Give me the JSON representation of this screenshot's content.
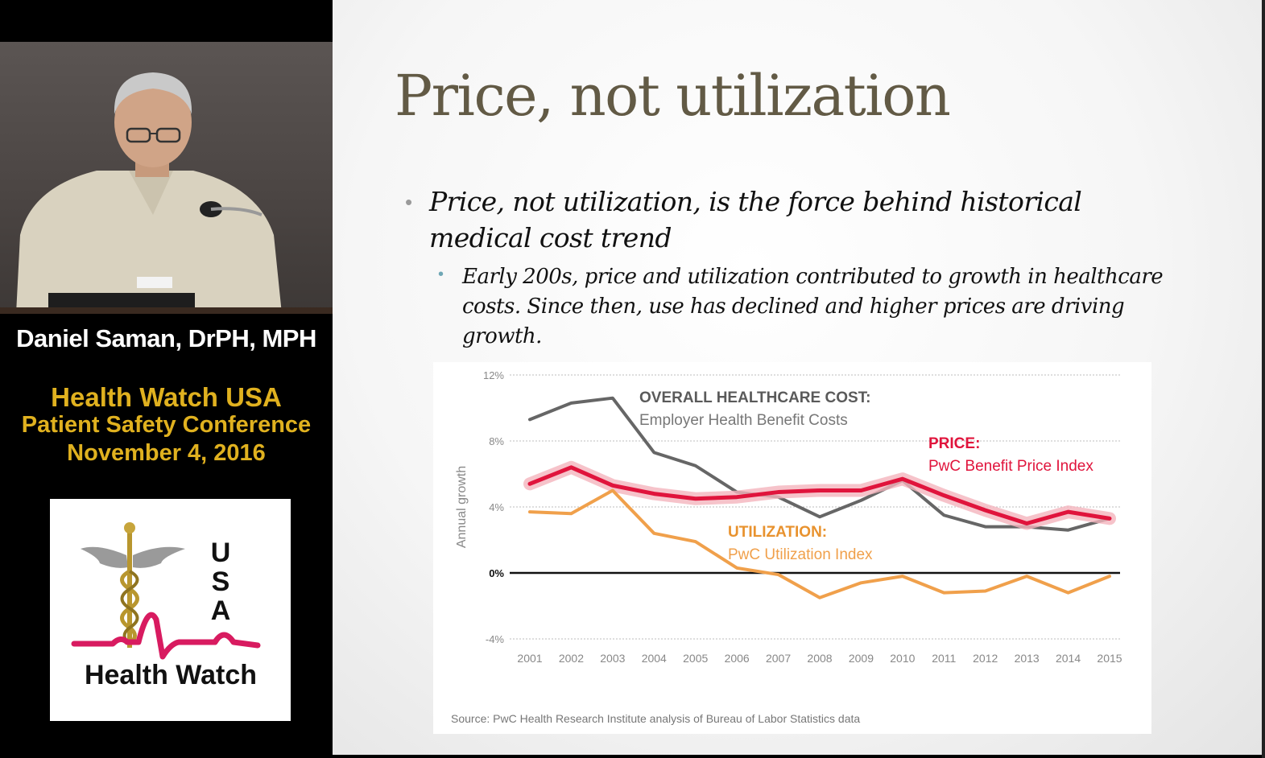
{
  "speaker": {
    "name": "Daniel Saman, DrPH, MPH"
  },
  "event": {
    "line1": "Health Watch USA",
    "line2": "Patient Safety Conference",
    "line3": "November 4, 2016"
  },
  "logo": {
    "usa_letters": [
      "U",
      "S",
      "A"
    ],
    "text": "Health Watch",
    "colors": {
      "ecg": "#d81b60",
      "caduceus": "#b8962e"
    }
  },
  "slide": {
    "title": "Price, not utilization",
    "bullet1": "Price, not utilization, is the force behind historical medical cost trend",
    "bullet2": "Early 200s, price and utilization contributed to growth in healthcare costs. Since then, use has declined and higher prices are driving growth."
  },
  "chart_data": {
    "type": "line",
    "ylabel": "Annual growth",
    "ylim": [
      -4,
      12
    ],
    "yticks": [
      "12%",
      "8%",
      "4%",
      "0%",
      "-4%"
    ],
    "ytick_values": [
      12,
      8,
      4,
      0,
      -4
    ],
    "x": [
      "2001",
      "2002",
      "2003",
      "2004",
      "2005",
      "2006",
      "2007",
      "2008",
      "2009",
      "2010",
      "2011",
      "2012",
      "2013",
      "2014",
      "2015"
    ],
    "series": [
      {
        "name": "OVERALL HEALTHCARE COST:",
        "subtitle": "Employer Health Benefit Costs",
        "color": "#666666",
        "values": [
          9.3,
          10.3,
          10.6,
          7.3,
          6.5,
          4.9,
          4.6,
          3.4,
          4.4,
          5.6,
          3.5,
          2.8,
          2.8,
          2.6,
          3.3
        ]
      },
      {
        "name": "PRICE:",
        "subtitle": "PwC Benefit Price Index",
        "color": "#e0143c",
        "highlight": "#f4b4bd",
        "values": [
          5.4,
          6.4,
          5.3,
          4.8,
          4.5,
          4.6,
          4.9,
          5.0,
          5.0,
          5.7,
          4.7,
          3.8,
          3.0,
          3.7,
          3.3
        ]
      },
      {
        "name": "UTILIZATION:",
        "subtitle": "PwC Utilization Index",
        "color": "#f0a04b",
        "values": [
          3.7,
          3.6,
          5.0,
          2.4,
          1.9,
          0.3,
          -0.1,
          -1.5,
          -0.6,
          -0.2,
          -1.2,
          -1.1,
          -0.2,
          -1.2,
          -0.2
        ]
      }
    ],
    "source": "Source: PwC Health Research Institute analysis of Bureau of Labor Statistics data"
  }
}
